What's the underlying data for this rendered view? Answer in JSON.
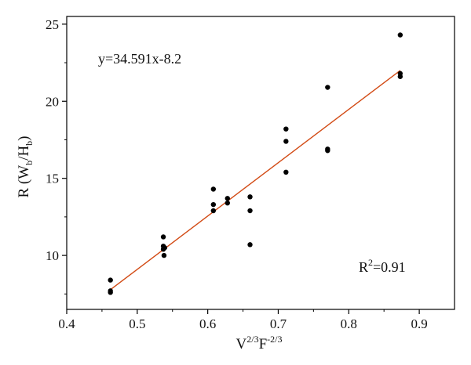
{
  "chart_data": {
    "type": "scatter",
    "xlabel": {
      "base1": "V",
      "sup1": "2/3",
      "base2": "F",
      "sup2": "-2/3"
    },
    "ylabel": {
      "pre": "R (W",
      "sub1": "b",
      "mid": "/H",
      "sub2": "b",
      "post": ")"
    },
    "xlim": [
      0.4,
      0.95
    ],
    "ylim": [
      6.5,
      25.5
    ],
    "xticks": [
      0.4,
      0.5,
      0.6,
      0.7,
      0.8,
      0.9
    ],
    "xtick_labels": [
      "0.4",
      "0.5",
      "0.6",
      "0.7",
      "0.8",
      "0.9"
    ],
    "yticks": [
      10,
      15,
      20,
      25
    ],
    "ytick_labels": [
      "10",
      "15",
      "20",
      "25"
    ],
    "grid": false,
    "points": [
      {
        "x": 0.462,
        "y": 8.4
      },
      {
        "x": 0.462,
        "y": 7.7
      },
      {
        "x": 0.462,
        "y": 7.6
      },
      {
        "x": 0.537,
        "y": 11.2
      },
      {
        "x": 0.537,
        "y": 10.6
      },
      {
        "x": 0.539,
        "y": 10.5
      },
      {
        "x": 0.537,
        "y": 10.4
      },
      {
        "x": 0.538,
        "y": 10.0
      },
      {
        "x": 0.608,
        "y": 14.3
      },
      {
        "x": 0.608,
        "y": 13.3
      },
      {
        "x": 0.608,
        "y": 12.9
      },
      {
        "x": 0.628,
        "y": 13.7
      },
      {
        "x": 0.628,
        "y": 13.4
      },
      {
        "x": 0.66,
        "y": 13.8
      },
      {
        "x": 0.66,
        "y": 12.9
      },
      {
        "x": 0.66,
        "y": 10.7
      },
      {
        "x": 0.711,
        "y": 18.2
      },
      {
        "x": 0.711,
        "y": 17.4
      },
      {
        "x": 0.711,
        "y": 15.4
      },
      {
        "x": 0.77,
        "y": 20.9
      },
      {
        "x": 0.77,
        "y": 16.9
      },
      {
        "x": 0.77,
        "y": 16.8
      },
      {
        "x": 0.873,
        "y": 24.3
      },
      {
        "x": 0.873,
        "y": 21.8
      },
      {
        "x": 0.873,
        "y": 21.6
      }
    ],
    "fit_line": {
      "slope": 34.591,
      "intercept": -8.2,
      "x_range": [
        0.462,
        0.873
      ],
      "color": "#d24a14"
    },
    "point_color": "#000000",
    "equation_label": "y=34.591x-8.2",
    "r2_label": {
      "base": "R",
      "sup": "2",
      "rest": "=0.91"
    }
  }
}
